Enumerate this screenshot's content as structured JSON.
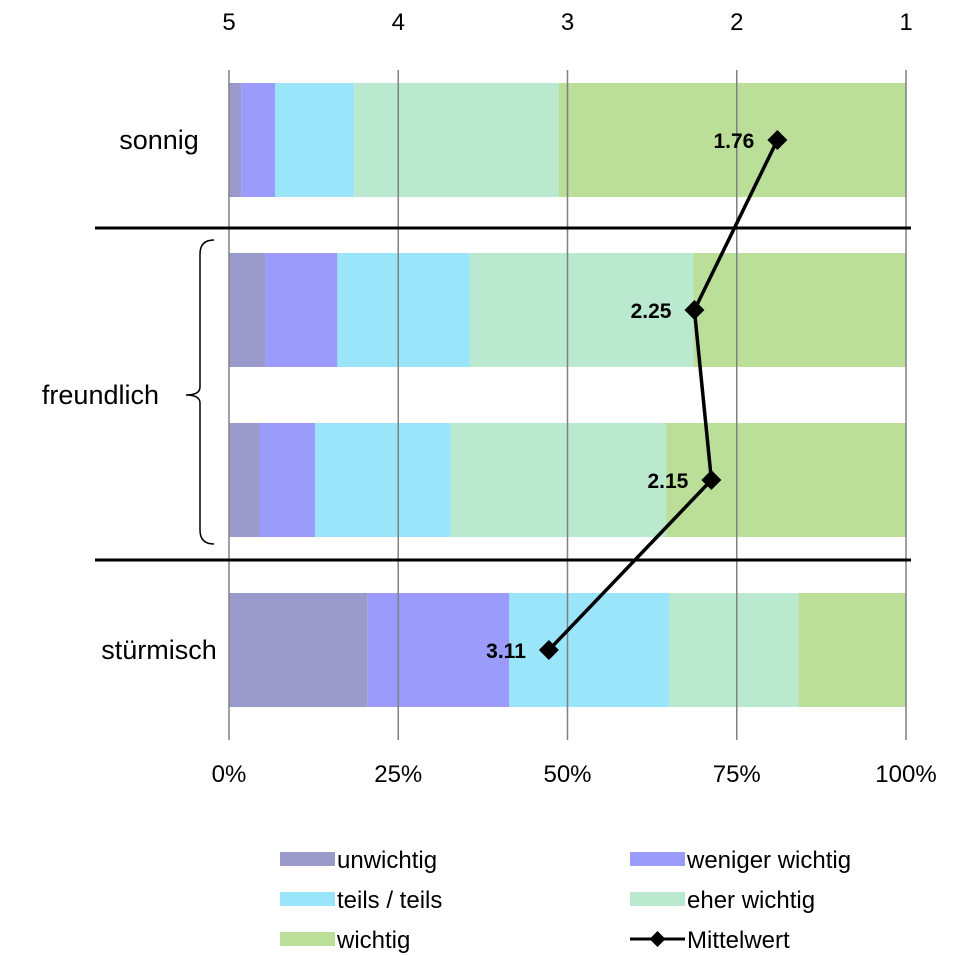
{
  "chart_data": {
    "type": "bar",
    "orientation": "horizontal",
    "stacked": "percent",
    "rows": [
      {
        "key": "sonnig",
        "values": [
          1.8,
          5.0,
          11.7,
          30.2,
          51.3
        ]
      },
      {
        "key": "freundlich_1",
        "values": [
          5.4,
          10.6,
          19.6,
          33.0,
          31.4
        ]
      },
      {
        "key": "freundlich_2",
        "values": [
          4.5,
          8.2,
          20.1,
          31.8,
          35.4
        ]
      },
      {
        "key": "stuermisch",
        "values": [
          20.5,
          20.9,
          23.6,
          19.1,
          15.9
        ]
      }
    ],
    "category_labels": [
      {
        "text": "sonnig",
        "rows": [
          0
        ]
      },
      {
        "text": "freundlich",
        "rows": [
          1,
          2
        ]
      },
      {
        "text": "stürmisch",
        "rows": [
          3
        ]
      }
    ],
    "series": [
      {
        "name": "unwichtig",
        "color": "#9b9bcb"
      },
      {
        "name": "weniger wichtig",
        "color": "#9b9bfb"
      },
      {
        "name": "teils / teils",
        "color": "#9be5fb"
      },
      {
        "name": "eher wichtig",
        "color": "#bbe9d0"
      },
      {
        "name": "wichtig",
        "color": "#bbde99"
      }
    ],
    "mean_series": {
      "name": "Mittelwert",
      "values": [
        1.76,
        2.25,
        2.15,
        3.11
      ],
      "labels": [
        "1.76",
        "2.25",
        "2.15",
        "3.11"
      ],
      "color": "#000000"
    },
    "x_axis_bottom": {
      "ticks": [
        "0%",
        "25%",
        "50%",
        "75%",
        "100%"
      ],
      "range": [
        0,
        100
      ]
    },
    "x_axis_top": {
      "ticks": [
        "5",
        "4",
        "3",
        "2",
        "1"
      ],
      "range": [
        5,
        1
      ]
    },
    "grid": true,
    "legend_position": "bottom",
    "gridline_color": "#808080"
  }
}
